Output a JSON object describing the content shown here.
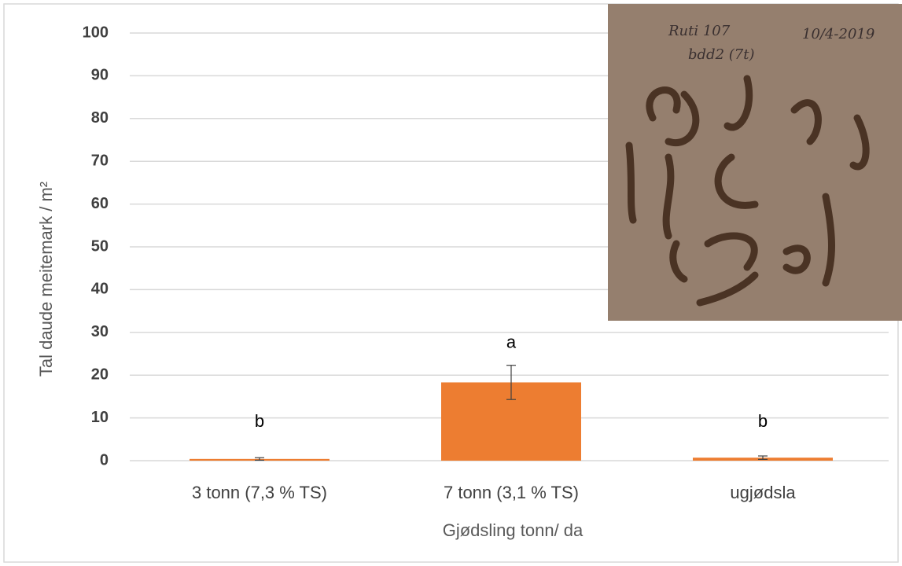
{
  "chart_data": {
    "type": "bar",
    "categories": [
      "3 tonn (7,3 % TS)",
      "7 tonn (3,1 % TS)",
      "ugjødsla"
    ],
    "values": [
      0.4,
      18.3,
      0.7
    ],
    "errors": [
      0.3,
      4.0,
      0.4
    ],
    "letters": [
      "b",
      "a",
      "b"
    ],
    "color": "#ed7d31",
    "ylim": [
      0,
      100
    ],
    "yticks": [
      0,
      10,
      20,
      30,
      40,
      50,
      60,
      70,
      80,
      90,
      100
    ],
    "grid": true,
    "ylabel": "Tal daude meitemark / m²",
    "xlabel": "Gjødsling tonn/ da",
    "inset_photo_text": [
      "Ruti 107",
      "10/4-2019",
      "bdd2 (7t)"
    ]
  }
}
